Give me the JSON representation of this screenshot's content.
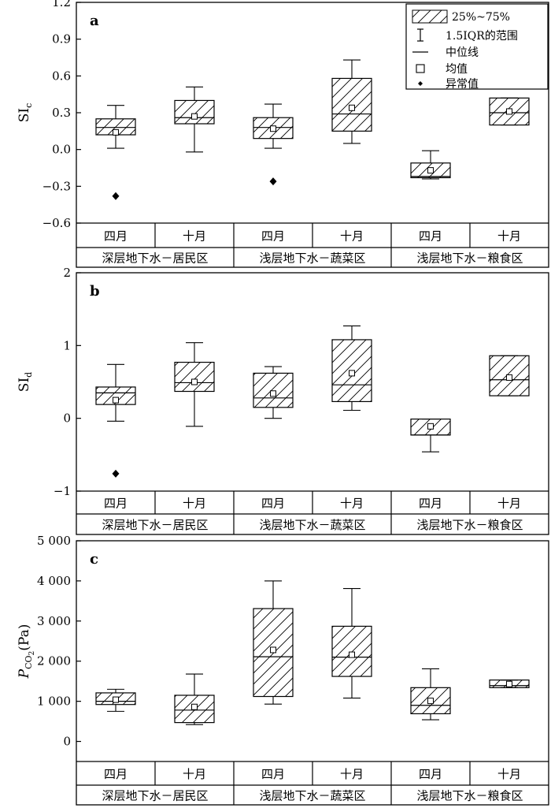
{
  "chart_data": [
    {
      "type": "box",
      "panel_label": "a",
      "ylabel": "SI",
      "ylabel_sub": "c",
      "ylim": [
        -0.6,
        1.2
      ],
      "yticks": [
        1.2,
        0.9,
        0.6,
        0.3,
        0.0,
        -0.3,
        -0.6
      ],
      "ytick_labels": [
        "1.2",
        "0.9",
        "0.6",
        "0.3",
        "0.0",
        "−0.3",
        "−0.6"
      ],
      "months": [
        "四月",
        "十月",
        "四月",
        "十月",
        "四月",
        "十月"
      ],
      "groups": [
        "深层地下水－居民区",
        "浅层地下水－蔬菜区",
        "浅层地下水－粮食区"
      ],
      "boxes": [
        {
          "q1": 0.12,
          "median": 0.18,
          "q3": 0.25,
          "mean": 0.14,
          "wlow": 0.01,
          "whigh": 0.36,
          "outliers": [
            -0.38
          ]
        },
        {
          "q1": 0.21,
          "median": 0.26,
          "q3": 0.4,
          "mean": 0.27,
          "wlow": -0.02,
          "whigh": 0.51,
          "outliers": []
        },
        {
          "q1": 0.09,
          "median": 0.18,
          "q3": 0.26,
          "mean": 0.17,
          "wlow": 0.01,
          "whigh": 0.37,
          "outliers": [
            -0.26
          ]
        },
        {
          "q1": 0.15,
          "median": 0.29,
          "q3": 0.58,
          "mean": 0.34,
          "wlow": 0.05,
          "whigh": 0.73,
          "outliers": []
        },
        {
          "q1": -0.23,
          "median": -0.22,
          "q3": -0.11,
          "mean": -0.17,
          "wlow": -0.24,
          "whigh": -0.01,
          "outliers": []
        },
        {
          "q1": 0.2,
          "median": 0.3,
          "q3": 0.42,
          "mean": 0.31,
          "wlow": 0.2,
          "whigh": 0.42,
          "outliers": []
        }
      ],
      "legend": {
        "placement": "top-right",
        "items": [
          "25%~75%",
          "1.5IQR的范围",
          "中位线",
          "均值",
          "异常值"
        ]
      }
    },
    {
      "type": "box",
      "panel_label": "b",
      "ylabel": "SI",
      "ylabel_sub": "d",
      "ylim": [
        -1.0,
        2.0
      ],
      "yticks": [
        2,
        1,
        0,
        -1
      ],
      "ytick_labels": [
        "2",
        "1",
        "0",
        "−1"
      ],
      "months": [
        "四月",
        "十月",
        "四月",
        "十月",
        "四月",
        "十月"
      ],
      "groups": [
        "深层地下水－居民区",
        "浅层地下水－蔬菜区",
        "浅层地下水－粮食区"
      ],
      "boxes": [
        {
          "q1": 0.19,
          "median": 0.35,
          "q3": 0.43,
          "mean": 0.25,
          "wlow": -0.04,
          "whigh": 0.74,
          "outliers": [
            -0.76
          ]
        },
        {
          "q1": 0.37,
          "median": 0.49,
          "q3": 0.77,
          "mean": 0.5,
          "wlow": -0.11,
          "whigh": 1.04,
          "outliers": []
        },
        {
          "q1": 0.15,
          "median": 0.28,
          "q3": 0.62,
          "mean": 0.34,
          "wlow": 0.0,
          "whigh": 0.71,
          "outliers": []
        },
        {
          "q1": 0.23,
          "median": 0.46,
          "q3": 1.08,
          "mean": 0.62,
          "wlow": 0.11,
          "whigh": 1.27,
          "outliers": []
        },
        {
          "q1": -0.23,
          "median": -0.23,
          "q3": -0.01,
          "mean": -0.11,
          "wlow": -0.46,
          "whigh": -0.01,
          "outliers": []
        },
        {
          "q1": 0.31,
          "median": 0.53,
          "q3": 0.86,
          "mean": 0.56,
          "wlow": 0.31,
          "whigh": 0.86,
          "outliers": []
        }
      ]
    },
    {
      "type": "box",
      "panel_label": "c",
      "ylabel": "P",
      "ylabel_sub": "CO",
      "ylabel_subsub": "2",
      "ylabel_suffix": "(Pa)",
      "ylim": [
        -500,
        5000
      ],
      "yticks": [
        5000,
        4000,
        3000,
        2000,
        1000,
        0
      ],
      "ytick_labels": [
        "5 000",
        "4 000",
        "3 000",
        "2 000",
        "1 000",
        "0"
      ],
      "months": [
        "四月",
        "十月",
        "四月",
        "十月",
        "四月",
        "十月"
      ],
      "groups": [
        "深层地下水－居民区",
        "浅层地下水－蔬菜区",
        "浅层地下水－粮食区"
      ],
      "boxes": [
        {
          "q1": 920,
          "median": 1000,
          "q3": 1210,
          "mean": 1040,
          "wlow": 750,
          "whigh": 1300,
          "outliers": []
        },
        {
          "q1": 470,
          "median": 780,
          "q3": 1150,
          "mean": 860,
          "wlow": 420,
          "whigh": 1680,
          "outliers": []
        },
        {
          "q1": 1120,
          "median": 2110,
          "q3": 3310,
          "mean": 2280,
          "wlow": 930,
          "whigh": 4000,
          "outliers": []
        },
        {
          "q1": 1620,
          "median": 2100,
          "q3": 2870,
          "mean": 2160,
          "wlow": 1080,
          "whigh": 3810,
          "outliers": []
        },
        {
          "q1": 690,
          "median": 900,
          "q3": 1340,
          "mean": 1010,
          "wlow": 540,
          "whigh": 1810,
          "outliers": []
        },
        {
          "q1": 1340,
          "median": 1390,
          "q3": 1530,
          "mean": 1430,
          "wlow": 1340,
          "whigh": 1530,
          "outliers": []
        }
      ]
    }
  ]
}
